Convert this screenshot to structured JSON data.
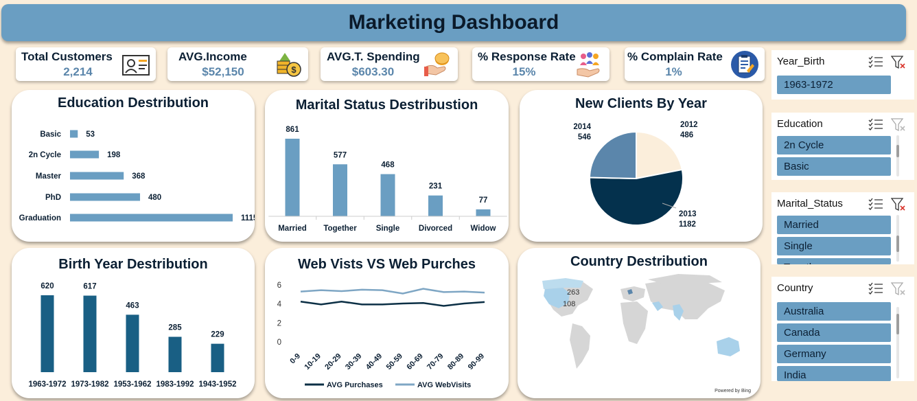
{
  "header": {
    "title": "Marketing Dashboard"
  },
  "kpis": [
    {
      "title": "Total Customers",
      "value": "2,214",
      "icon": "customer-id-card-icon"
    },
    {
      "title": "AVG.Income",
      "value": "$52,150",
      "icon": "money-growth-icon"
    },
    {
      "title": "AVG.T. Spending",
      "value": "$603.30",
      "icon": "hand-coins-icon"
    },
    {
      "title": "% Response Rate",
      "value": "15%",
      "icon": "people-hand-icon"
    },
    {
      "title": "% Complain Rate",
      "value": "1%",
      "icon": "clipboard-report-icon"
    }
  ],
  "charts": {
    "education": {
      "title": "Education Destribution",
      "chart_data": {
        "type": "bar",
        "orientation": "horizontal",
        "categories": [
          "Basic",
          "2n Cycle",
          "Master",
          "PhD",
          "Graduation"
        ],
        "values": [
          53,
          198,
          368,
          480,
          1115
        ],
        "color": "#6a9ec2"
      }
    },
    "marital": {
      "title": "Marital Status Destribustion",
      "chart_data": {
        "type": "bar",
        "categories": [
          "Married",
          "Together",
          "Single",
          "Divorced",
          "Widow"
        ],
        "values": [
          861,
          577,
          468,
          231,
          77
        ],
        "color": "#6a9ec2"
      }
    },
    "new_clients": {
      "title": "New Clients By Year",
      "chart_data": {
        "type": "pie",
        "slices": [
          {
            "label": "2012",
            "value": 486,
            "color": "#fbeedb"
          },
          {
            "label": "2013",
            "value": 1182,
            "color": "#04314d"
          },
          {
            "label": "2014",
            "value": 546,
            "color": "#5b86ab"
          }
        ]
      }
    },
    "birth_year": {
      "title": "Birth Year Destribution",
      "chart_data": {
        "type": "bar",
        "categories": [
          "1963-1972",
          "1973-1982",
          "1953-1962",
          "1983-1992",
          "1943-1952"
        ],
        "values": [
          620,
          617,
          463,
          285,
          229
        ],
        "color": "#195f84"
      }
    },
    "web": {
      "title": "Web Vists VS Web Purches",
      "chart_data": {
        "type": "line",
        "categories": [
          "0-9",
          "10-19",
          "20-29",
          "30-39",
          "40-49",
          "50-59",
          "60-69",
          "70-79",
          "80-89",
          "90-99"
        ],
        "yticks": [
          "0",
          "2",
          "4",
          "6"
        ],
        "ylim": [
          0,
          6
        ],
        "series": [
          {
            "name": "AVG Purchases",
            "values": [
              4.25,
              3.95,
              4.25,
              3.95,
              3.95,
              4.05,
              4.1,
              3.8,
              4.05,
              4.2
            ],
            "color": "#0b2f45"
          },
          {
            "name": "AVG WebVisits",
            "values": [
              5.3,
              5.45,
              5.35,
              5.5,
              5.45,
              5.1,
              5.6,
              5.25,
              5.3,
              5.2
            ],
            "color": "#7ea6c4"
          }
        ]
      }
    },
    "country": {
      "title": "Country Destribution",
      "labels": [
        "263",
        "108"
      ],
      "credit": "Powered by Bing"
    }
  },
  "slicers": [
    {
      "title": "Year_Birth",
      "items": [
        "1963-1972"
      ]
    },
    {
      "title": "Education",
      "items": [
        "2n Cycle",
        "Basic"
      ]
    },
    {
      "title": "Marital_Status",
      "items": [
        "Married",
        "Single",
        "Together"
      ]
    },
    {
      "title": "Country",
      "items": [
        "Australia",
        "Canada",
        "Germany",
        "India"
      ]
    }
  ],
  "colors": {
    "header": "#6a9ec2",
    "accent": "#5b86ab",
    "navy": "#04314d",
    "background": "#fbeedb"
  }
}
